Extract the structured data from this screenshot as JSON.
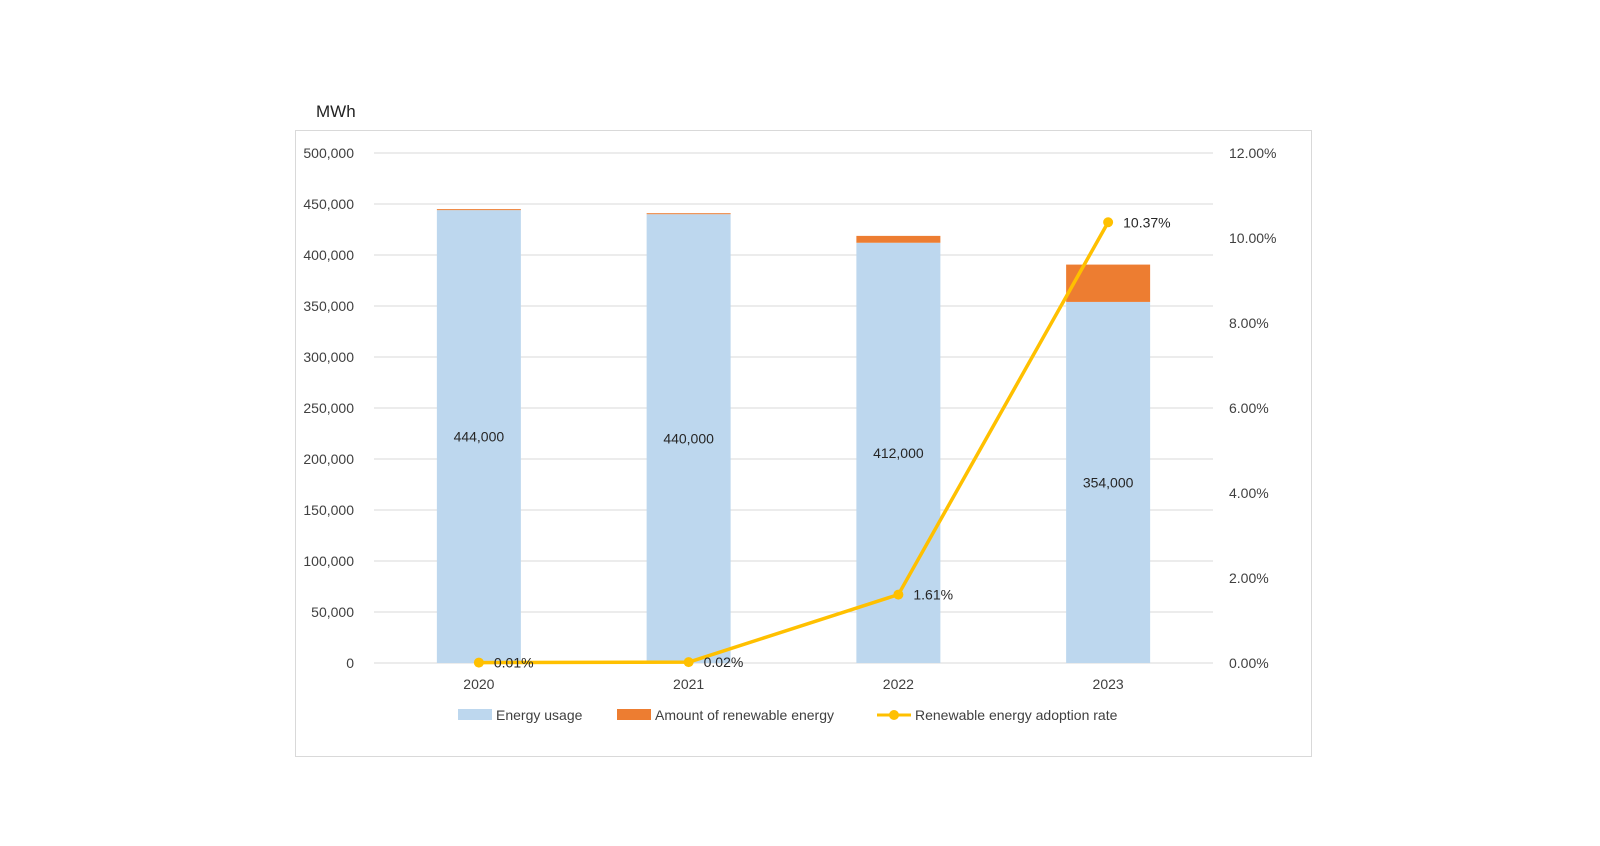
{
  "chart_data": {
    "type": "bar",
    "unit_label": "MWh",
    "categories": [
      "2020",
      "2021",
      "2022",
      "2023"
    ],
    "series": [
      {
        "name": "Energy usage",
        "kind": "stacked-bar",
        "axis": "left",
        "values": [
          444000,
          440000,
          412000,
          354000
        ],
        "data_labels": [
          "444,000",
          "440,000",
          "412,000",
          "354,000"
        ],
        "color": "#bdd7ee"
      },
      {
        "name": "Amount of renewable energy",
        "kind": "stacked-bar",
        "axis": "left",
        "values": [
          44,
          88,
          6740,
          36600
        ],
        "color": "#ed7d31"
      },
      {
        "name": "Renewable energy adoption rate",
        "kind": "line",
        "axis": "right",
        "values": [
          0.01,
          0.02,
          1.61,
          10.37
        ],
        "data_labels": [
          "0.01%",
          "0.02%",
          "1.61%",
          "10.37%"
        ],
        "color": "#ffc000"
      }
    ],
    "ylim_left": [
      0,
      500000
    ],
    "ylim_right": [
      0,
      12
    ],
    "left_ticks": [
      "0",
      "50,000",
      "100,000",
      "150,000",
      "200,000",
      "250,000",
      "300,000",
      "350,000",
      "400,000",
      "450,000",
      "500,000"
    ],
    "right_ticks": [
      "0.00%",
      "2.00%",
      "4.00%",
      "6.00%",
      "8.00%",
      "10.00%",
      "12.00%"
    ],
    "grid": true,
    "legend_position": "bottom"
  }
}
